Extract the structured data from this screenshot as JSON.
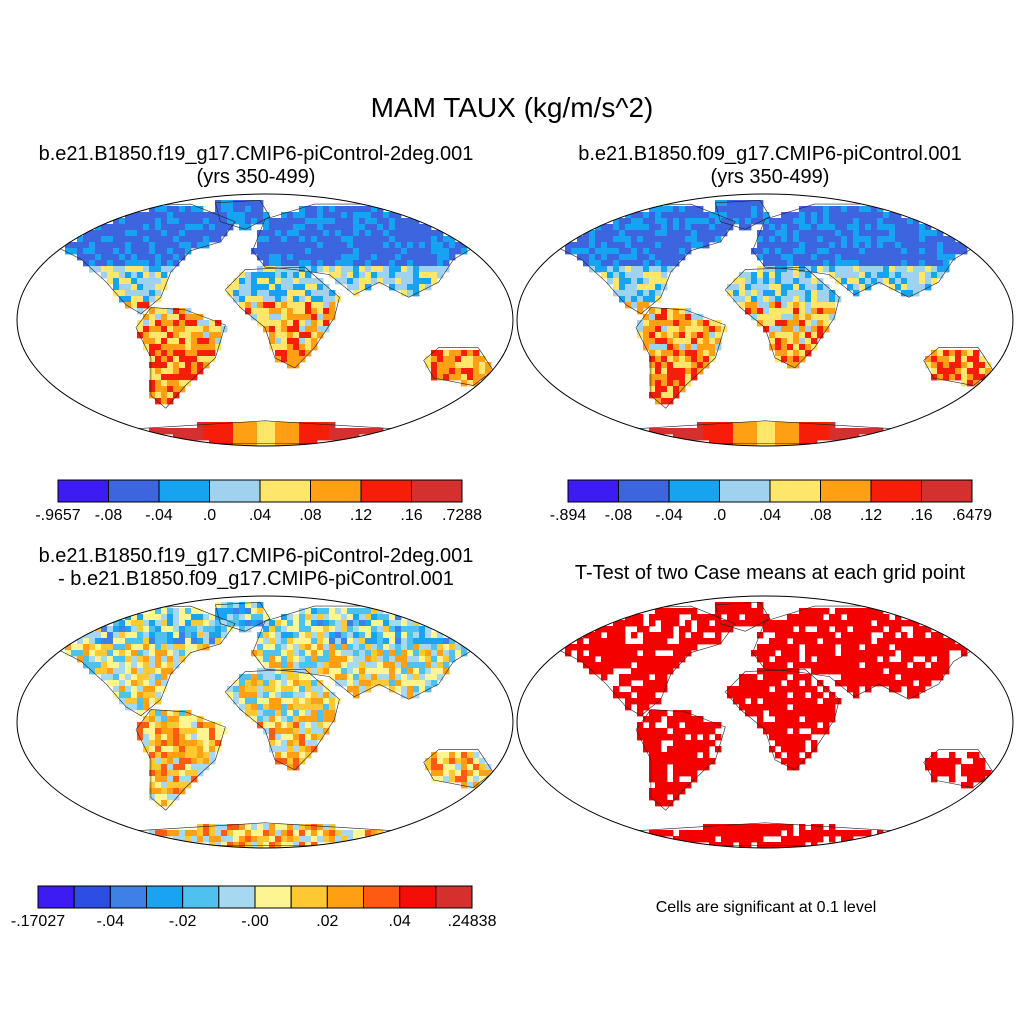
{
  "figure": {
    "title": "MAM TAUX (kg/m/s^2)"
  },
  "panels": [
    {
      "id": "case1",
      "title_line1": "b.e21.B1850.f19_g17.CMIP6-piControl-2deg.001",
      "title_line2": "(yrs 350-499)",
      "colorbar": {
        "colors": [
          "#3d1cf4",
          "#3e65e0",
          "#15a3f2",
          "#9fd2ee",
          "#fde66a",
          "#ff9f14",
          "#f61d09",
          "#d52f2e"
        ],
        "labels": [
          "-.9657",
          "-.08",
          "-.04",
          ".0",
          ".04",
          ".08",
          ".12",
          ".16",
          ".7288"
        ]
      },
      "map_style": "field"
    },
    {
      "id": "case2",
      "title_line1": "b.e21.B1850.f09_g17.CMIP6-piControl.001",
      "title_line2": "(yrs 350-499)",
      "colorbar": {
        "colors": [
          "#3d1cf4",
          "#3e65e0",
          "#15a3f2",
          "#9fd2ee",
          "#fde66a",
          "#ff9f14",
          "#f61d09",
          "#d52f2e"
        ],
        "labels": [
          "-.894",
          "-.08",
          "-.04",
          ".0",
          ".04",
          ".08",
          ".12",
          ".16",
          ".6479"
        ]
      },
      "map_style": "field"
    },
    {
      "id": "difference",
      "title_line1": "b.e21.B1850.f19_g17.CMIP6-piControl-2deg.001",
      "title_line2": "- b.e21.B1850.f09_g17.CMIP6-piControl.001",
      "colorbar": {
        "colors": [
          "#3d1cf4",
          "#2c4ee5",
          "#3f7fe8",
          "#1aa3f2",
          "#4fc1ef",
          "#a6d8f0",
          "#fdf592",
          "#fdc832",
          "#ff9f14",
          "#ff5a12",
          "#f40e08",
          "#d52f2e"
        ],
        "labels": [
          "-.17027",
          "-.04",
          "-.02",
          "-.00",
          ".02",
          ".04",
          ".24838"
        ]
      },
      "map_style": "diff"
    },
    {
      "id": "ttest",
      "title_line1": "T-Test of two Case means at each grid point",
      "title_line2": "",
      "note": "Cells are significant at 0.1 level",
      "map_style": "signif",
      "signif_color": "#f40000"
    }
  ]
}
